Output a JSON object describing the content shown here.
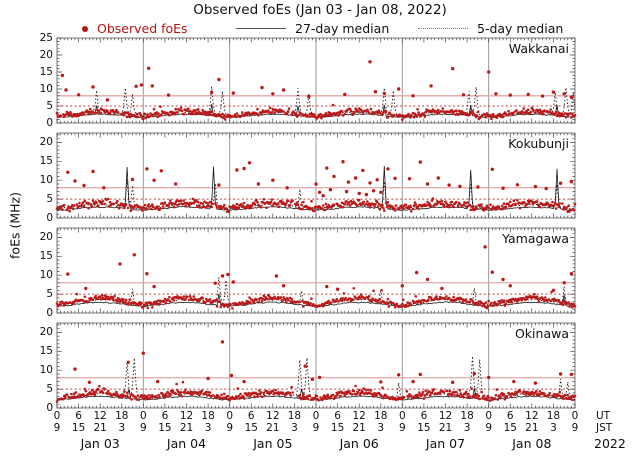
{
  "title": "Observed foEs (Jan 03 - Jan 08, 2022)",
  "legend": {
    "observed": "Observed foEs",
    "median27": "27-day median",
    "median5": "5-day median"
  },
  "axis": {
    "ut_label": "UT",
    "jst_label": "JST",
    "year_label": "2022"
  },
  "colors": {
    "point": "#bb1a1a",
    "legend_text": "#b41414",
    "threshold_solid": "#e8a6a6",
    "threshold_dotted": "#c33a3a",
    "median27": "#1a1a1a",
    "median5": "#111111",
    "border": "#7a7a7a",
    "dayline": "#9a9a9a",
    "tick": "#444444"
  },
  "chart_data": {
    "type": "scatter",
    "title": "Observed foEs (Jan 03 - Jan 08, 2022)",
    "ylabel": "foEs (MHz)",
    "x_hours_total": 144,
    "days": [
      "Jan 03",
      "Jan 04",
      "Jan 05",
      "Jan 06",
      "Jan 07",
      "Jan 08"
    ],
    "day_separator_hours": [
      24,
      48,
      72,
      96,
      120
    ],
    "ut_ticks": [
      "0",
      "6",
      "12",
      "18"
    ],
    "jst_ticks": [
      "9",
      "15",
      "21",
      "3"
    ],
    "ut_end": "0",
    "jst_end": "9",
    "thresholds": {
      "solid_mhz": 8,
      "dotted_mhz": 5
    },
    "panels": [
      {
        "station": "Wakkanai",
        "yscale": 25,
        "yticks": [
          0,
          5,
          10,
          15,
          20,
          25
        ],
        "seed": 11,
        "base": 2.0,
        "diurnal": 1.5,
        "noise": 0.85,
        "m27base": 1.9,
        "m5base": 2.3,
        "outliers": [
          [
            1.5,
            14
          ],
          [
            2.5,
            9.7
          ],
          [
            6,
            8.3
          ],
          [
            10,
            10.6
          ],
          [
            14,
            6.8
          ],
          [
            22,
            10.8
          ],
          [
            23.5,
            11.2
          ],
          [
            25.5,
            16.1
          ],
          [
            26.5,
            10.9
          ],
          [
            31,
            8.2
          ],
          [
            43,
            9
          ],
          [
            45,
            12.8
          ],
          [
            49,
            8.8
          ],
          [
            57,
            10.4
          ],
          [
            60,
            8.6
          ],
          [
            63,
            9.7
          ],
          [
            70,
            7.8
          ],
          [
            80,
            8.4
          ],
          [
            87,
            18
          ],
          [
            88.5,
            9.2
          ],
          [
            91,
            8.7
          ],
          [
            95,
            10
          ],
          [
            99,
            8
          ],
          [
            104,
            10.9
          ],
          [
            110,
            16
          ],
          [
            113,
            8.3
          ],
          [
            120,
            15
          ],
          [
            122,
            8.6
          ],
          [
            126,
            8.2
          ],
          [
            131,
            8.4
          ],
          [
            135,
            7.9
          ],
          [
            138,
            9.1
          ],
          [
            141,
            8.6
          ],
          [
            143,
            7.6
          ]
        ],
        "spikes5": [
          [
            11,
            9.5
          ],
          [
            19,
            10.2
          ],
          [
            21,
            8.4
          ],
          [
            43,
            10.6
          ],
          [
            46,
            9.2
          ],
          [
            67,
            10.1
          ],
          [
            70,
            8.6
          ],
          [
            91,
            10.2
          ],
          [
            93.5,
            9.4
          ],
          [
            114.5,
            9.2
          ],
          [
            116.5,
            10.5
          ],
          [
            138.5,
            9.0
          ],
          [
            141.5,
            10.3
          ],
          [
            143.5,
            8.8
          ]
        ],
        "spikes27": [
          [
            11,
            5
          ],
          [
            43,
            5.5
          ],
          [
            67,
            5
          ],
          [
            91,
            5.2
          ],
          [
            115,
            5
          ],
          [
            139,
            5.2
          ]
        ]
      },
      {
        "station": "Kokubunji",
        "yscale": 22.5,
        "yticks": [
          0,
          5,
          10,
          15,
          20
        ],
        "seed": 23,
        "base": 2.6,
        "diurnal": 1.4,
        "noise": 1.0,
        "m27base": 2.3,
        "m5base": 2.8,
        "outliers": [
          [
            3,
            12.1
          ],
          [
            5,
            9.8
          ],
          [
            7.5,
            8.6
          ],
          [
            10,
            12.3
          ],
          [
            13,
            8
          ],
          [
            21,
            10.2
          ],
          [
            25,
            13
          ],
          [
            27,
            10
          ],
          [
            29,
            12.5
          ],
          [
            33,
            9
          ],
          [
            45,
            8.7
          ],
          [
            50,
            12.7
          ],
          [
            52,
            13.1
          ],
          [
            53.5,
            14.6
          ],
          [
            56,
            9
          ],
          [
            60,
            10
          ],
          [
            64,
            8
          ],
          [
            72,
            9
          ],
          [
            73,
            6.8
          ],
          [
            74,
            5.9
          ],
          [
            75,
            13.2
          ],
          [
            76,
            7.5
          ],
          [
            77,
            11
          ],
          [
            79.5,
            14.9
          ],
          [
            80.5,
            7
          ],
          [
            81,
            9.5
          ],
          [
            83,
            10.6
          ],
          [
            84,
            6.5
          ],
          [
            85,
            12.6
          ],
          [
            86,
            6.2
          ],
          [
            87,
            9.3
          ],
          [
            88,
            7.2
          ],
          [
            89,
            10.1
          ],
          [
            90,
            6.8
          ],
          [
            92,
            13
          ],
          [
            94,
            10.5
          ],
          [
            98,
            10.4
          ],
          [
            101,
            14.8
          ],
          [
            103,
            9
          ],
          [
            106,
            10.6
          ],
          [
            109,
            8.7
          ],
          [
            112,
            8.4
          ],
          [
            117,
            8.2
          ],
          [
            121,
            12.9
          ],
          [
            124,
            7.9
          ],
          [
            128,
            8.8
          ],
          [
            133,
            8.3
          ],
          [
            136,
            7.8
          ],
          [
            140,
            9.2
          ],
          [
            143,
            9.6
          ]
        ],
        "spikes5": [
          [
            19.5,
            10
          ],
          [
            21,
            8.5
          ],
          [
            44,
            9
          ],
          [
            67.5,
            7.5
          ],
          [
            91,
            9.6
          ],
          [
            115,
            9.2
          ],
          [
            139,
            8.8
          ]
        ],
        "spikes27": [
          [
            19.5,
            13.4
          ],
          [
            43.5,
            13.5
          ],
          [
            91,
            13.6
          ],
          [
            115,
            12.6
          ],
          [
            139,
            12.9
          ]
        ]
      },
      {
        "station": "Yamagawa",
        "yscale": 22.5,
        "yticks": [
          0,
          5,
          10,
          15,
          20
        ],
        "seed": 37,
        "base": 2.2,
        "diurnal": 1.8,
        "noise": 0.75,
        "m27base": 2.0,
        "m5base": 2.4,
        "outliers": [
          [
            3,
            10.3
          ],
          [
            8,
            6.5
          ],
          [
            17.5,
            13
          ],
          [
            21.5,
            15.4
          ],
          [
            25,
            10.4
          ],
          [
            27,
            7
          ],
          [
            44,
            7.9
          ],
          [
            46,
            9.8
          ],
          [
            47.5,
            10.2
          ],
          [
            49,
            8.2
          ],
          [
            61,
            9.8
          ],
          [
            63,
            7.2
          ],
          [
            75,
            7
          ],
          [
            78,
            6.3
          ],
          [
            96,
            7.2
          ],
          [
            100,
            10.7
          ],
          [
            103,
            8.9
          ],
          [
            107,
            6.5
          ],
          [
            119,
            17.5
          ],
          [
            121,
            10.8
          ],
          [
            124,
            8.9
          ],
          [
            126,
            7.2
          ],
          [
            138,
            6
          ],
          [
            141,
            8
          ],
          [
            143,
            10.4
          ]
        ],
        "spikes5": [
          [
            21,
            6.3
          ],
          [
            45,
            9.3
          ],
          [
            47,
            8.6
          ],
          [
            68,
            5.8
          ],
          [
            90,
            6.2
          ],
          [
            116,
            6.5
          ],
          [
            141,
            6.9
          ]
        ],
        "spikes27": [
          [
            45,
            5
          ],
          [
            141,
            4.6
          ]
        ]
      },
      {
        "station": "Okinawa",
        "yscale": 22.5,
        "yticks": [
          0,
          5,
          10,
          15,
          20
        ],
        "seed": 51,
        "base": 2.6,
        "diurnal": 1.6,
        "noise": 0.85,
        "m27base": 2.4,
        "m5base": 2.8,
        "outliers": [
          [
            5,
            10.3
          ],
          [
            9,
            6.8
          ],
          [
            19.8,
            12.1
          ],
          [
            24,
            14.5
          ],
          [
            28,
            7
          ],
          [
            42,
            7.8
          ],
          [
            46,
            17.5
          ],
          [
            48.5,
            8.6
          ],
          [
            52,
            7
          ],
          [
            69,
            11.1
          ],
          [
            71,
            7.6
          ],
          [
            73,
            8.1
          ],
          [
            90,
            6.9
          ],
          [
            95,
            8.8
          ],
          [
            99,
            7
          ],
          [
            101,
            8.9
          ],
          [
            110,
            6.8
          ],
          [
            116,
            9.1
          ],
          [
            120,
            8.1
          ],
          [
            127,
            7
          ],
          [
            133,
            6.6
          ],
          [
            140,
            9.0
          ],
          [
            143,
            8.9
          ]
        ],
        "spikes5": [
          [
            19.5,
            12.2
          ],
          [
            21.5,
            13.1
          ],
          [
            67.5,
            12.6
          ],
          [
            69.5,
            13.2
          ],
          [
            95,
            6.6
          ],
          [
            115.5,
            13.6
          ],
          [
            117.5,
            12.7
          ],
          [
            140,
            7.6
          ],
          [
            142,
            6.8
          ]
        ],
        "spikes27": [
          [
            20,
            4.8
          ],
          [
            68,
            5
          ],
          [
            116,
            5.2
          ]
        ]
      }
    ]
  }
}
